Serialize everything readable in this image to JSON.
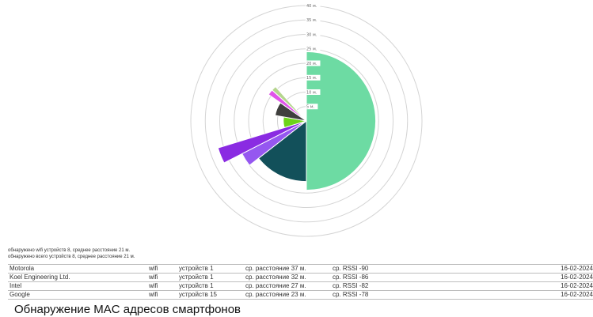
{
  "chart_data": {
    "type": "polar-area",
    "r_axis": {
      "max": 40,
      "ticks": [
        "5 м.",
        "10 м.",
        "15 м.",
        "20 м.",
        "25 м.",
        "30 м.",
        "35 м.",
        "40 м."
      ],
      "tick_values": [
        5,
        10,
        15,
        20,
        25,
        30,
        35,
        40
      ]
    },
    "grid": true,
    "segments": [
      {
        "start_deg": 0,
        "end_deg": 180,
        "value": 24,
        "color": "#6ddba3"
      },
      {
        "start_deg": 180,
        "end_deg": 232,
        "value": 21,
        "color": "#12505a"
      },
      {
        "start_deg": 232,
        "end_deg": 243,
        "value": 25,
        "color": "#9557f0"
      },
      {
        "start_deg": 243,
        "end_deg": 253,
        "value": 32,
        "color": "#8a2be2"
      },
      {
        "start_deg": 253,
        "end_deg": 280,
        "value": 8,
        "color": "#6dd31a"
      },
      {
        "start_deg": 280,
        "end_deg": 305,
        "value": 11,
        "color": "#3f3f3d"
      },
      {
        "start_deg": 305,
        "end_deg": 312,
        "value": 16,
        "color": "#e055e9"
      },
      {
        "start_deg": 312,
        "end_deg": 318,
        "value": 16,
        "color": "#b5d58e"
      }
    ]
  },
  "summary": {
    "wifi": "обнаружено wifi устройств 8, среднее расстояние 21 м.",
    "all": "обнаружено всего устройств 8, среднее расстояние 21 м."
  },
  "devices": [
    {
      "name": "Motorola",
      "type": "wifi",
      "count": "устройств 1",
      "distance": "ср. расстояние 37 м.",
      "rssi": "ср. RSSI -90",
      "date": "16-02-2024"
    },
    {
      "name": "Koel Engineering Ltd.",
      "type": "wifi",
      "count": "устройств 1",
      "distance": "ср. расстояние 32 м.",
      "rssi": "ср. RSSI -86",
      "date": "16-02-2024"
    },
    {
      "name": "Intel",
      "type": "wifi",
      "count": "устройств 1",
      "distance": "ср. расстояние 27 м.",
      "rssi": "ср. RSSI -82",
      "date": "16-02-2024"
    },
    {
      "name": "Google",
      "type": "wifi",
      "count": "устройств 15",
      "distance": "ср. расстояние 23 м.",
      "rssi": "ср. RSSI -78",
      "date": "16-02-2024"
    }
  ],
  "title": "Обнаружение MAC адресов смартфонов"
}
